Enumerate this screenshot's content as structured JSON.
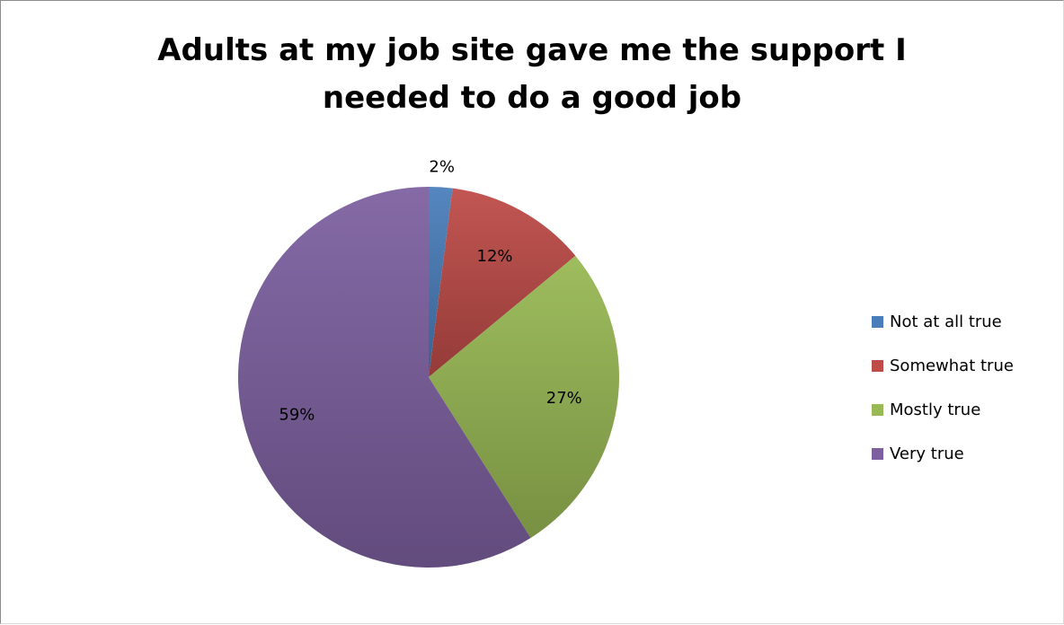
{
  "chart_data": {
    "type": "pie",
    "title_lines": [
      "Adults at my job site gave me the support I",
      "needed to do a good job"
    ],
    "categories": [
      "Not at all true",
      "Somewhat true",
      "Mostly true",
      "Very true"
    ],
    "values": [
      2,
      12,
      27,
      59
    ],
    "data_labels": [
      "2%",
      "12%",
      "27%",
      "59%"
    ],
    "colors": [
      "#4a7ebb",
      "#be4b48",
      "#98b954",
      "#7d60a0"
    ],
    "legend_position": "right"
  }
}
